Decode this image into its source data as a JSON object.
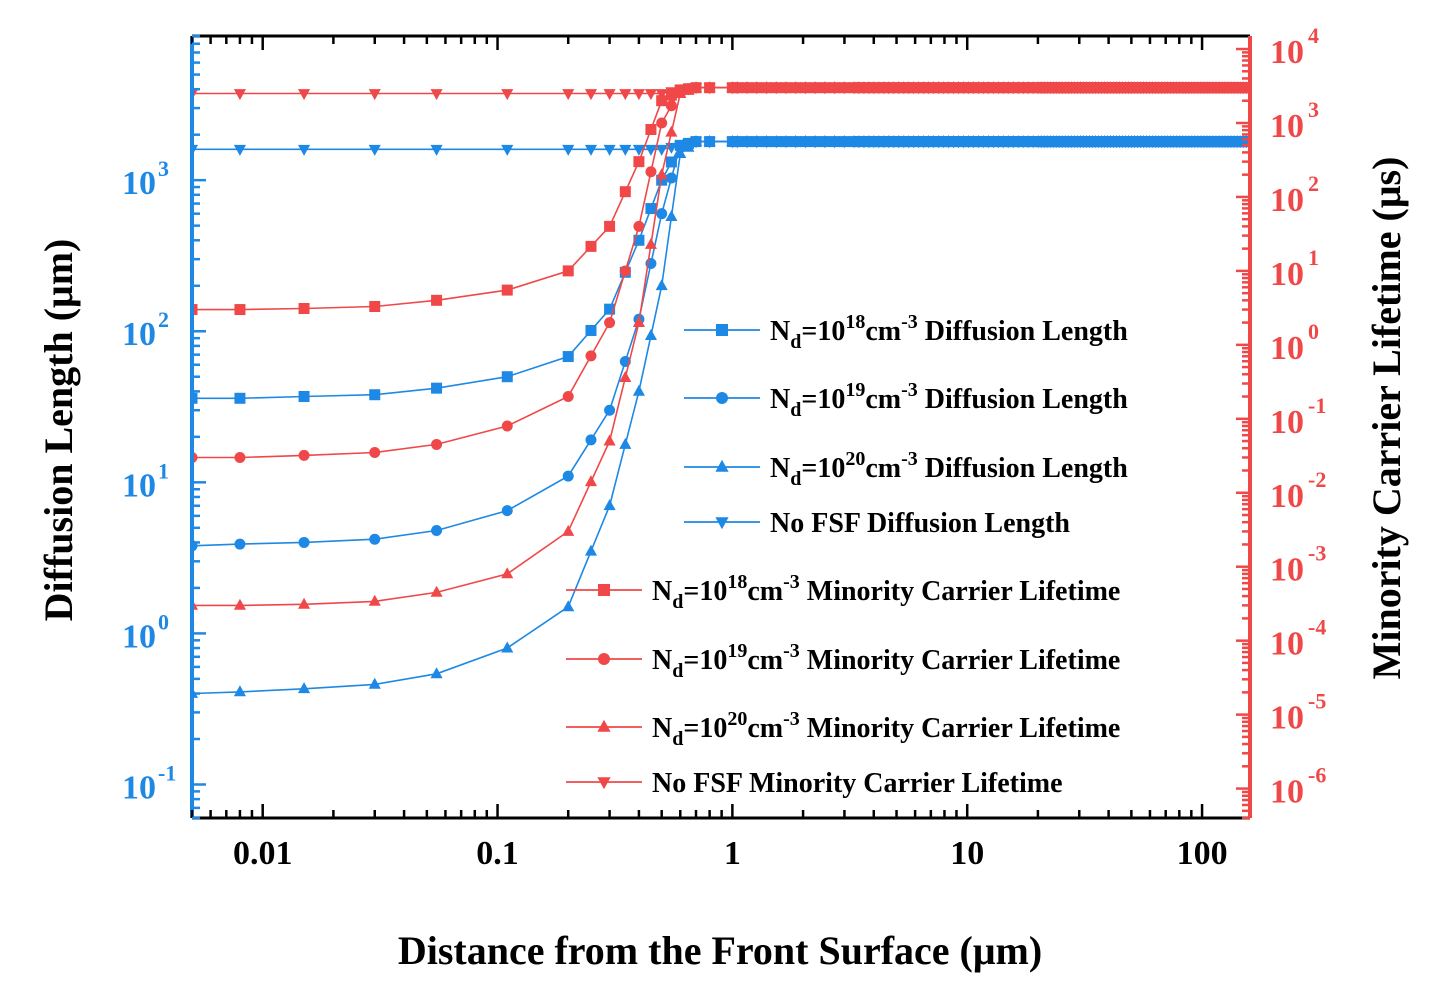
{
  "chart_data": {
    "type": "line",
    "xscale": "log",
    "xlabel": "Distance from the Front Surface (μm)",
    "xlim": [
      0.005,
      160
    ],
    "x_ticks": [
      {
        "value": 0.01,
        "label": "0.01"
      },
      {
        "value": 0.1,
        "label": "0.1"
      },
      {
        "value": 1,
        "label": "1"
      },
      {
        "value": 10,
        "label": "10"
      },
      {
        "value": 100,
        "label": "100"
      }
    ],
    "left_axis": {
      "label": "Diffusion Length (μm)",
      "scale": "log",
      "lim": [
        0.06,
        9000
      ],
      "ticks": [
        {
          "value": 0.1,
          "base": "10",
          "exp": "-1"
        },
        {
          "value": 1,
          "base": "10",
          "exp": "0"
        },
        {
          "value": 10,
          "base": "10",
          "exp": "1"
        },
        {
          "value": 100,
          "base": "10",
          "exp": "2"
        },
        {
          "value": 1000,
          "base": "10",
          "exp": "3"
        }
      ],
      "color": "#1e88e5"
    },
    "right_axis": {
      "label": "Minority Carrier Lifetime (μs)",
      "scale": "log",
      "lim": [
        4e-07,
        15000
      ],
      "ticks": [
        {
          "value": 1e-06,
          "base": "10",
          "exp": "-6"
        },
        {
          "value": 1e-05,
          "base": "10",
          "exp": "-5"
        },
        {
          "value": 0.0001,
          "base": "10",
          "exp": "-4"
        },
        {
          "value": 0.001,
          "base": "10",
          "exp": "-3"
        },
        {
          "value": 0.01,
          "base": "10",
          "exp": "-2"
        },
        {
          "value": 0.1,
          "base": "10",
          "exp": "-1"
        },
        {
          "value": 1,
          "base": "10",
          "exp": "0"
        },
        {
          "value": 10,
          "base": "10",
          "exp": "1"
        },
        {
          "value": 100,
          "base": "10",
          "exp": "2"
        },
        {
          "value": 1000,
          "base": "10",
          "exp": "3"
        },
        {
          "value": 10000,
          "base": "10",
          "exp": "4"
        }
      ],
      "color": "#f04848"
    },
    "series": [
      {
        "name": "Nd=10^18 cm^-3 Diffusion Length",
        "axis": "left",
        "color": "#1e88e5",
        "marker": "square",
        "plateau": 1800,
        "x": [
          0.005,
          0.008,
          0.015,
          0.03,
          0.055,
          0.11,
          0.2,
          0.3,
          0.4,
          0.5,
          0.6,
          0.7
        ],
        "y": [
          36,
          36,
          37,
          38,
          42,
          50,
          68,
          140,
          400,
          1000,
          1700,
          1800
        ]
      },
      {
        "name": "Nd=10^19 cm^-3 Diffusion Length",
        "axis": "left",
        "color": "#1e88e5",
        "marker": "circle",
        "plateau": 1800,
        "x": [
          0.005,
          0.008,
          0.015,
          0.03,
          0.055,
          0.11,
          0.2,
          0.3,
          0.4,
          0.5,
          0.6,
          0.7
        ],
        "y": [
          3.8,
          3.9,
          4.0,
          4.2,
          4.8,
          6.5,
          11,
          30,
          120,
          600,
          1700,
          1800
        ]
      },
      {
        "name": "Nd=10^20 cm^-3 Diffusion Length",
        "axis": "left",
        "color": "#1e88e5",
        "marker": "triangle-up",
        "plateau": 1800,
        "x": [
          0.005,
          0.008,
          0.015,
          0.03,
          0.055,
          0.11,
          0.2,
          0.3,
          0.4,
          0.5,
          0.6,
          0.7
        ],
        "y": [
          0.4,
          0.41,
          0.43,
          0.46,
          0.54,
          0.8,
          1.5,
          7,
          40,
          200,
          1500,
          1800
        ]
      },
      {
        "name": "No FSF Diffusion Length",
        "axis": "left",
        "color": "#1e88e5",
        "marker": "triangle-down",
        "plateau": 1800,
        "x": [
          0.005,
          0.008,
          0.015,
          0.03,
          0.055,
          0.11,
          0.2,
          0.3,
          0.4,
          0.5,
          0.6,
          0.7
        ],
        "y": [
          1600,
          1600,
          1600,
          1600,
          1600,
          1600,
          1600,
          1600,
          1600,
          1600,
          1700,
          1800
        ]
      },
      {
        "name": "Nd=10^18 cm^-3 Minority Carrier Lifetime",
        "axis": "right",
        "color": "#f04848",
        "marker": "square",
        "plateau": 3000,
        "x": [
          0.005,
          0.008,
          0.015,
          0.03,
          0.055,
          0.11,
          0.2,
          0.3,
          0.4,
          0.5,
          0.6,
          0.7
        ],
        "y": [
          3,
          3,
          3.1,
          3.3,
          4,
          5.5,
          10,
          40,
          300,
          2000,
          2800,
          3000
        ]
      },
      {
        "name": "Nd=10^19 cm^-3 Minority Carrier Lifetime",
        "axis": "right",
        "color": "#f04848",
        "marker": "circle",
        "plateau": 3000,
        "x": [
          0.005,
          0.008,
          0.015,
          0.03,
          0.055,
          0.11,
          0.2,
          0.3,
          0.4,
          0.5,
          0.6,
          0.7
        ],
        "y": [
          0.03,
          0.03,
          0.032,
          0.035,
          0.045,
          0.08,
          0.2,
          2,
          40,
          1000,
          2800,
          3000
        ]
      },
      {
        "name": "Nd=10^20 cm^-3 Minority Carrier Lifetime",
        "axis": "right",
        "color": "#f04848",
        "marker": "triangle-up",
        "plateau": 3000,
        "x": [
          0.005,
          0.008,
          0.015,
          0.03,
          0.055,
          0.11,
          0.2,
          0.3,
          0.4,
          0.5,
          0.6,
          0.7
        ],
        "y": [
          0.0003,
          0.0003,
          0.00031,
          0.00034,
          0.00045,
          0.0008,
          0.003,
          0.05,
          2,
          200,
          2500,
          3000
        ]
      },
      {
        "name": "No FSF Minority Carrier Lifetime",
        "axis": "right",
        "color": "#f04848",
        "marker": "triangle-down",
        "plateau": 3000,
        "x": [
          0.005,
          0.008,
          0.015,
          0.03,
          0.055,
          0.11,
          0.2,
          0.3,
          0.4,
          0.5,
          0.6,
          0.7
        ],
        "y": [
          2500,
          2500,
          2500,
          2500,
          2500,
          2500,
          2500,
          2500,
          2500,
          2500,
          2800,
          3000
        ]
      }
    ],
    "legend": {
      "placement": "center-right",
      "entries": [
        {
          "marker": "square",
          "color": "#1e88e5",
          "pre": "N",
          "sub": "d",
          "mid": "=10",
          "sup": "18",
          "unit": "cm",
          "usup": "-3",
          "post": " Diffusion Length"
        },
        {
          "marker": "circle",
          "color": "#1e88e5",
          "pre": "N",
          "sub": "d",
          "mid": "=10",
          "sup": "19",
          "unit": "cm",
          "usup": "-3",
          "post": " Diffusion Length"
        },
        {
          "marker": "triangle-up",
          "color": "#1e88e5",
          "pre": "N",
          "sub": "d",
          "mid": "=10",
          "sup": "20",
          "unit": "cm",
          "usup": "-3",
          "post": " Diffusion Length"
        },
        {
          "marker": "triangle-down",
          "color": "#1e88e5",
          "pre": "No FSF Diffusion Length",
          "sub": "",
          "mid": "",
          "sup": "",
          "unit": "",
          "usup": "",
          "post": ""
        },
        {
          "marker": "square",
          "color": "#f04848",
          "pre": "N",
          "sub": "d",
          "mid": "=10",
          "sup": "18",
          "unit": "cm",
          "usup": "-3",
          "post": " Minority Carrier Lifetime"
        },
        {
          "marker": "circle",
          "color": "#f04848",
          "pre": "N",
          "sub": "d",
          "mid": "=10",
          "sup": "19",
          "unit": "cm",
          "usup": "-3",
          "post": " Minority Carrier Lifetime"
        },
        {
          "marker": "triangle-up",
          "color": "#f04848",
          "pre": "N",
          "sub": "d",
          "mid": "=10",
          "sup": "20",
          "unit": "cm",
          "usup": "-3",
          "post": " Minority Carrier Lifetime"
        },
        {
          "marker": "triangle-down",
          "color": "#f04848",
          "pre": "No FSF Minority Carrier Lifetime",
          "sub": "",
          "mid": "",
          "sup": "",
          "unit": "",
          "usup": "",
          "post": ""
        }
      ]
    }
  }
}
